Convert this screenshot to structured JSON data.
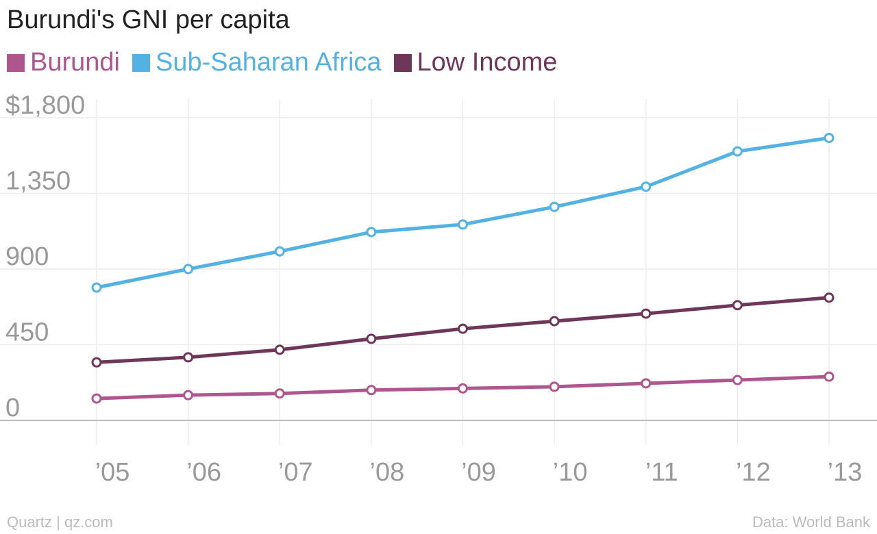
{
  "title": "Burundi's GNI per capita",
  "footer": {
    "source_left": "Quartz | qz.com",
    "source_right": "Data: World Bank"
  },
  "chart_data": {
    "type": "line",
    "title": "Burundi's GNI per capita",
    "xlabel": "",
    "ylabel": "",
    "x": [
      "’05",
      "’06",
      "’07",
      "’08",
      "’09",
      "’10",
      "’11",
      "’12",
      "’13"
    ],
    "y_ticks": [
      "$1,800",
      "1,350",
      "900",
      "450",
      "0"
    ],
    "y_tick_values": [
      1800,
      1350,
      900,
      450,
      0
    ],
    "ylim": [
      0,
      1800
    ],
    "grid": true,
    "legend_position": "top-left",
    "series": [
      {
        "name": "Burundi",
        "color": "#b0568f",
        "values": [
          130,
          150,
          160,
          180,
          190,
          200,
          220,
          240,
          260
        ]
      },
      {
        "name": "Sub-Saharan Africa",
        "color": "#52b2e4",
        "values": [
          790,
          900,
          1005,
          1120,
          1165,
          1270,
          1390,
          1600,
          1680
        ]
      },
      {
        "name": "Low Income",
        "color": "#6e3659",
        "values": [
          345,
          375,
          420,
          485,
          545,
          590,
          635,
          685,
          730
        ]
      }
    ]
  }
}
